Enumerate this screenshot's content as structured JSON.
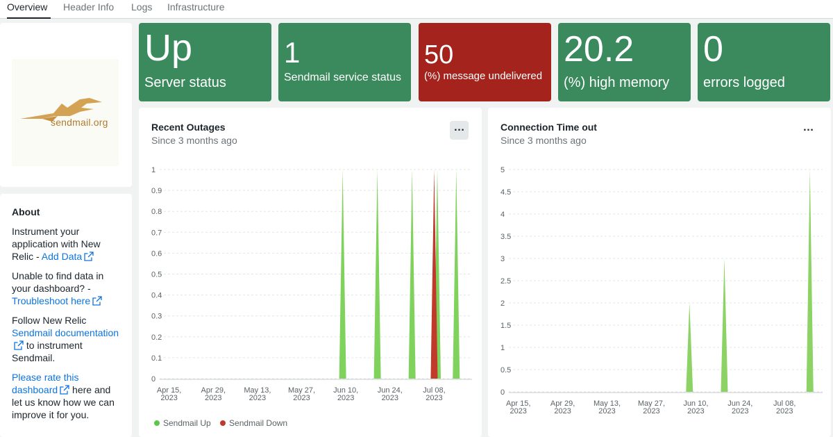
{
  "tabs": [
    {
      "label": "Overview",
      "active": true
    },
    {
      "label": "Header Info"
    },
    {
      "label": "Logs"
    },
    {
      "label": "Infrastructure"
    }
  ],
  "logo": {
    "text": "sendmail.org"
  },
  "about": {
    "title": "About",
    "p1_text": "Instrument your application with New Relic - ",
    "p1_link": "Add Data",
    "p2_text": "Unable to find data in your dashboard? - ",
    "p2_link": "Troubleshoot here",
    "p3_text": "Follow New Relic ",
    "p3_link": "Sendmail documentation",
    "p3_text_after": " to instrument Sendmail.",
    "p4_link": "Please rate this dashboard",
    "p4_text_after": " here and let us know how we can improve it for you."
  },
  "billboards": [
    {
      "value": "Up",
      "label": "Server status",
      "color": "#3a8a5d"
    },
    {
      "value": "1",
      "label": "Sendmail service status",
      "color": "#3a8a5d"
    },
    {
      "value": "50",
      "label": "(%) message undelivered",
      "color": "#a4231d"
    },
    {
      "value": "20.2",
      "label": "(%) high memory",
      "color": "#3a8a5d"
    },
    {
      "value": "0",
      "label": "errors logged",
      "color": "#3a8a5d"
    }
  ],
  "charts": [
    {
      "title": "Recent Outages",
      "subtitle": "Since 3 months ago",
      "legend": [
        {
          "name": "Sendmail Up",
          "color": "#7fd25c"
        },
        {
          "name": "Sendmail Down",
          "color": "#c0392b"
        }
      ]
    },
    {
      "title": "Connection Time out",
      "subtitle": "Since 3 months ago"
    }
  ],
  "chart_data": [
    {
      "type": "area",
      "title": "Recent Outages",
      "subtitle": "Since 3 months ago",
      "ylim": [
        0,
        1
      ],
      "yticks": [
        "0",
        "0.1",
        "0.2",
        "0.3",
        "0.4",
        "0.5",
        "0.6",
        "0.7",
        "0.8",
        "0.9",
        "1"
      ],
      "xticks": [
        {
          "date": "2023-04-15",
          "label1": "Apr 15,",
          "label2": "2023"
        },
        {
          "date": "2023-04-29",
          "label1": "Apr 29,",
          "label2": "2023"
        },
        {
          "date": "2023-05-13",
          "label1": "May 13,",
          "label2": "2023"
        },
        {
          "date": "2023-05-27",
          "label1": "May 27,",
          "label2": "2023"
        },
        {
          "date": "2023-06-10",
          "label1": "Jun 10,",
          "label2": "2023"
        },
        {
          "date": "2023-06-24",
          "label1": "Jun 24,",
          "label2": "2023"
        },
        {
          "date": "2023-07-08",
          "label1": "Jul 08,",
          "label2": "2023"
        }
      ],
      "xlim": [
        "2023-04-12",
        "2023-07-20"
      ],
      "series": [
        {
          "name": "Sendmail Up",
          "color": "#7fd25c",
          "spikes": [
            {
              "date": "2023-06-09",
              "value": 1
            },
            {
              "date": "2023-06-20",
              "value": 1
            },
            {
              "date": "2023-07-01",
              "value": 1
            },
            {
              "date": "2023-07-09",
              "value": 1
            },
            {
              "date": "2023-07-15",
              "value": 1
            }
          ]
        },
        {
          "name": "Sendmail Down",
          "color": "#c0392b",
          "spikes": [
            {
              "date": "2023-07-08",
              "value": 1
            }
          ]
        }
      ]
    },
    {
      "type": "area",
      "title": "Connection Time out",
      "subtitle": "Since 3 months ago",
      "ylim": [
        0,
        5
      ],
      "yticks": [
        "0",
        "0.5",
        "1",
        "1.5",
        "2",
        "2.5",
        "3",
        "3.5",
        "4",
        "4.5",
        "5"
      ],
      "xticks": [
        {
          "date": "2023-04-15",
          "label1": "Apr 15,",
          "label2": "2023"
        },
        {
          "date": "2023-04-29",
          "label1": "Apr 29,",
          "label2": "2023"
        },
        {
          "date": "2023-05-13",
          "label1": "May 13,",
          "label2": "2023"
        },
        {
          "date": "2023-05-27",
          "label1": "May 27,",
          "label2": "2023"
        },
        {
          "date": "2023-06-10",
          "label1": "Jun 10,",
          "label2": "2023"
        },
        {
          "date": "2023-06-24",
          "label1": "Jun 24,",
          "label2": "2023"
        },
        {
          "date": "2023-07-08",
          "label1": "Jul 08,",
          "label2": "2023"
        }
      ],
      "xlim": [
        "2023-04-12",
        "2023-07-20"
      ],
      "series": [
        {
          "color": "#8cd264",
          "spikes": [
            {
              "date": "2023-06-08",
              "value": 2
            },
            {
              "date": "2023-06-19",
              "value": 3
            },
            {
              "date": "2023-07-16",
              "value": 5
            }
          ]
        }
      ]
    }
  ]
}
